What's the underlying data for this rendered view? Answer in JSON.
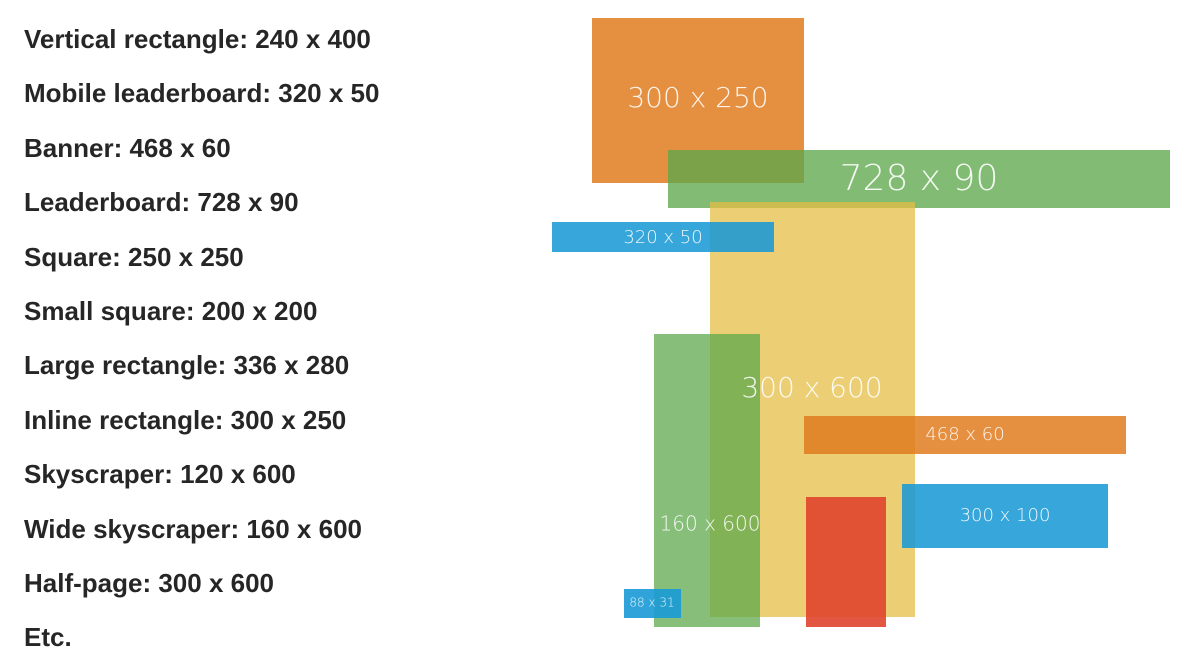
{
  "list": [
    "Vertical rectangle: 240 x 400",
    "Mobile leaderboard: 320 x 50",
    "Banner: 468 x 60",
    "Leaderboard: 728 x 90",
    "Square: 250 x 250",
    "Small square: 200 x 200",
    "Large rectangle: 336 x 280",
    "Inline rectangle: 300 x 250",
    "Skyscraper: 120 x 600",
    "Wide skyscraper: 160 x 600",
    "Half-page: 300 x 600",
    "Etc."
  ],
  "boxes": [
    "300 x 250",
    "728 x 90",
    "300 x 600",
    "320 x 50",
    "160 x 600",
    "468 x 60",
    "300 x 100",
    "88 x 31"
  ]
}
